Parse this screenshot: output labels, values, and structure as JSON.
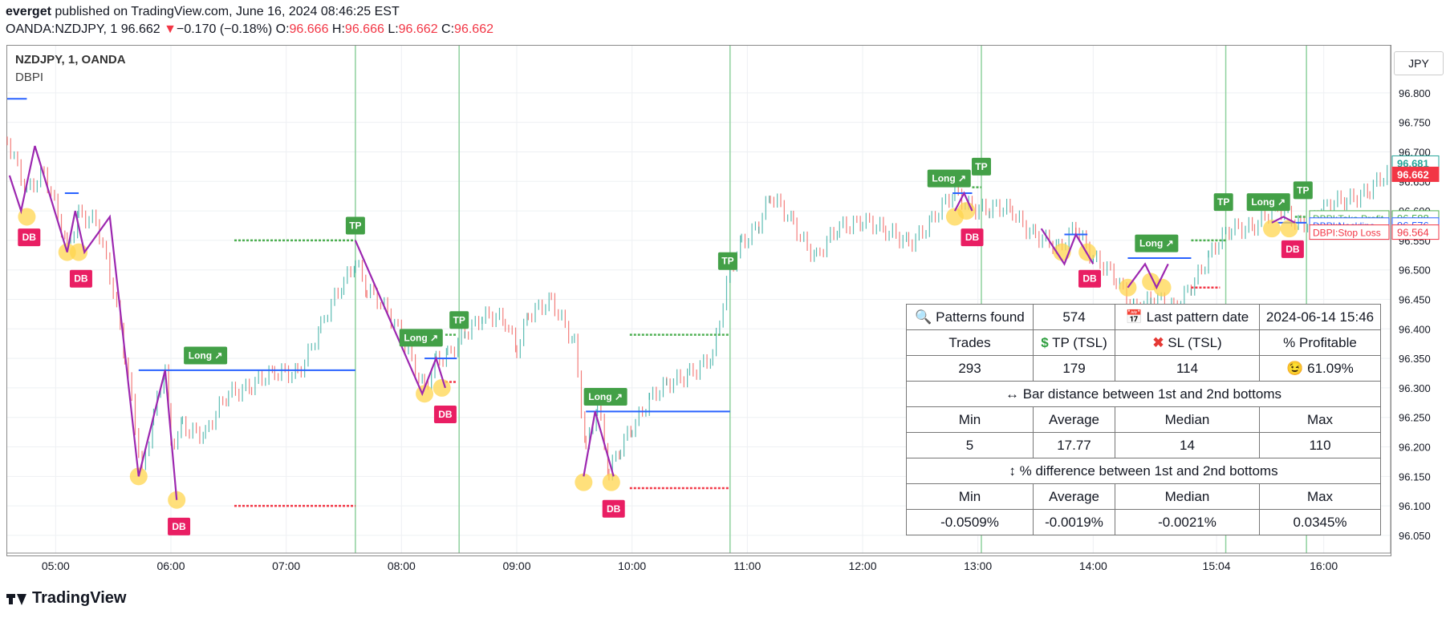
{
  "header": {
    "user": "everget",
    "published": "published on TradingView.com, June 16, 2024 08:46:25 EST",
    "symbol": "OANDA:NZDJPY, 1",
    "last": "96.662",
    "change_arrow": "▼",
    "change": "−0.170 (−0.18%)",
    "open_label": "O:",
    "open": "96.666",
    "high_label": "H:",
    "high": "96.666",
    "low_label": "L:",
    "low": "96.662",
    "close_label": "C:",
    "close": "96.662"
  },
  "chart_legend": {
    "title": "NZDJPY, 1, OANDA",
    "indicator": "DBPI"
  },
  "currency_button": "JPY",
  "colors": {
    "up": "#26a69a",
    "down": "#ef5350",
    "pattern": "#9c27b0",
    "neckline": "#2962ff",
    "tp": "#4caf50",
    "sl": "#f23645",
    "db_label": "#e91e63"
  },
  "price_tags": [
    {
      "name": "tp-tag",
      "label": "DBPI:Take Profit",
      "value": "96.588",
      "color": "#4caf50"
    },
    {
      "name": "neckline-tag",
      "label": "DBPI:Neckline",
      "value": "96.576",
      "color": "#2962ff"
    },
    {
      "name": "sl-tag",
      "label": "DBPI:Stop Loss",
      "value": "96.564",
      "color": "#f23645"
    }
  ],
  "last_price_tags": [
    {
      "value": "96.681",
      "style": "outline"
    },
    {
      "value": "96.662",
      "style": "filled"
    }
  ],
  "stats_table": {
    "patterns_found_icon": "magnifier-icon",
    "patterns_found_label": "Patterns found",
    "patterns_found": "574",
    "last_date_icon": "calendar-icon",
    "last_date_label": "Last pattern date",
    "last_date": "2024-06-14 15:46",
    "trades_label": "Trades",
    "tp_icon": "dollar-icon",
    "tp_label": "TP (TSL)",
    "sl_icon": "cross-icon",
    "sl_label": "SL (TSL)",
    "profitable_label": "% Profitable",
    "trades": "293",
    "tp": "179",
    "sl": "114",
    "profitable_icon": "smile-icon",
    "profitable": "61.09%",
    "bar_distance_title": "↔ Bar distance between 1st and 2nd bottoms",
    "min_label": "Min",
    "avg_label": "Average",
    "median_label": "Median",
    "max_label": "Max",
    "bd_min": "5",
    "bd_avg": "17.77",
    "bd_median": "14",
    "bd_max": "110",
    "pct_diff_title": "↕ % difference between 1st and 2nd bottoms",
    "pd_min": "-0.0509%",
    "pd_avg": "-0.0019%",
    "pd_median": "-0.0021%",
    "pd_max": "0.0345%"
  },
  "footer": {
    "brand": "TradingView"
  },
  "chart_data": {
    "type": "line",
    "title": "NZDJPY, 1, OANDA",
    "xlabel": "",
    "ylabel": "",
    "x_tick_labels": [
      "05:00",
      "06:00",
      "07:00",
      "08:00",
      "09:00",
      "10:00",
      "11:00",
      "12:00",
      "13:00",
      "14:00",
      "15:04",
      "16:00"
    ],
    "y_tick_labels": [
      "96.800",
      "96.750",
      "96.700",
      "96.650",
      "96.600",
      "96.550",
      "96.500",
      "96.450",
      "96.400",
      "96.350",
      "96.300",
      "96.250",
      "96.200",
      "96.150",
      "96.100",
      "96.050"
    ],
    "ylim": [
      96.02,
      96.88
    ],
    "xlim": [
      4.58,
      16.58
    ],
    "grid": true,
    "series": [
      {
        "name": "NZDJPY, 1, OANDA",
        "x": [
          4.58,
          4.75,
          4.9,
          5.1,
          5.2,
          5.35,
          5.5,
          5.6,
          5.75,
          5.85,
          5.95,
          6.0,
          6.1,
          6.3,
          6.5,
          6.7,
          6.9,
          7.1,
          7.3,
          7.5,
          7.6,
          7.7,
          7.85,
          8.0,
          8.2,
          8.3,
          8.4,
          8.55,
          8.7,
          8.9,
          9.0,
          9.1,
          9.3,
          9.5,
          9.6,
          9.7,
          9.8,
          9.9,
          10.0,
          10.15,
          10.3,
          10.5,
          10.7,
          10.85,
          10.95,
          11.1,
          11.2,
          11.4,
          11.6,
          11.8,
          12.0,
          12.2,
          12.4,
          12.6,
          12.8,
          12.95,
          13.1,
          13.3,
          13.5,
          13.7,
          13.85,
          14.0,
          14.2,
          14.35,
          14.5,
          14.7,
          14.85,
          15.0,
          15.2,
          15.4,
          15.6,
          15.8,
          16.0,
          16.2,
          16.4,
          16.58
        ],
        "values": [
          96.72,
          96.64,
          96.66,
          96.54,
          96.6,
          96.58,
          96.46,
          96.36,
          96.16,
          96.25,
          96.33,
          96.2,
          96.24,
          96.22,
          96.29,
          96.31,
          96.32,
          96.33,
          96.4,
          96.48,
          96.52,
          96.47,
          96.43,
          96.39,
          96.3,
          96.34,
          96.35,
          96.4,
          96.42,
          96.41,
          96.37,
          96.43,
          96.44,
          96.38,
          96.2,
          96.27,
          96.15,
          96.2,
          96.24,
          96.28,
          96.3,
          96.33,
          96.35,
          96.5,
          96.55,
          96.58,
          96.62,
          96.58,
          96.52,
          96.57,
          96.59,
          96.56,
          96.55,
          96.58,
          96.63,
          96.61,
          96.6,
          96.6,
          96.56,
          96.53,
          96.58,
          96.52,
          96.48,
          96.44,
          96.45,
          96.43,
          96.48,
          96.52,
          96.57,
          96.58,
          96.6,
          96.58,
          96.6,
          96.62,
          96.64,
          96.66
        ]
      }
    ],
    "pattern_lines": [
      {
        "x": [
          4.6,
          4.7,
          4.82,
          5.1,
          5.17,
          5.25,
          5.47,
          5.72,
          5.95,
          6.05
        ],
        "values": [
          96.66,
          96.6,
          96.71,
          96.53,
          96.6,
          96.53,
          96.59,
          96.15,
          96.33,
          96.11
        ]
      },
      {
        "x": [
          7.6,
          8.18,
          8.3,
          8.38
        ],
        "values": [
          96.55,
          96.29,
          96.35,
          96.3
        ]
      },
      {
        "x": [
          9.58,
          9.68,
          9.84
        ],
        "values": [
          96.15,
          96.26,
          96.15
        ]
      },
      {
        "x": [
          12.8,
          12.88,
          12.95
        ],
        "values": [
          96.6,
          96.63,
          96.6
        ]
      },
      {
        "x": [
          13.55,
          13.75,
          13.85,
          14.0
        ],
        "values": [
          96.57,
          96.51,
          96.56,
          96.51
        ]
      },
      {
        "x": [
          14.3,
          14.45,
          14.55,
          14.65
        ],
        "values": [
          96.47,
          96.51,
          96.47,
          96.51
        ]
      },
      {
        "x": [
          15.55,
          15.65,
          15.75
        ],
        "values": [
          96.58,
          96.59,
          96.58
        ]
      }
    ],
    "necklines": [
      {
        "x": [
          5.72,
          7.6
        ],
        "value": 96.33
      },
      {
        "x": [
          4.58,
          4.75
        ],
        "value": 96.79
      },
      {
        "x": [
          5.08,
          5.2
        ],
        "value": 96.63
      },
      {
        "x": [
          8.2,
          8.48
        ],
        "value": 96.35
      },
      {
        "x": [
          9.6,
          10.85
        ],
        "value": 96.26
      },
      {
        "x": [
          12.78,
          12.95
        ],
        "value": 96.63
      },
      {
        "x": [
          13.75,
          13.95
        ],
        "value": 96.56
      },
      {
        "x": [
          14.3,
          14.85
        ],
        "value": 96.52
      },
      {
        "x": [
          15.6,
          15.85
        ],
        "value": 96.58
      }
    ],
    "take_profit_lines": [
      {
        "x": [
          6.55,
          7.6
        ],
        "value": 96.55
      },
      {
        "x": [
          8.38,
          8.48
        ],
        "value": 96.39
      },
      {
        "x": [
          9.98,
          10.85
        ],
        "value": 96.39
      },
      {
        "x": [
          12.95,
          13.03
        ],
        "value": 96.64
      },
      {
        "x": [
          14.85,
          15.15
        ],
        "value": 96.55
      },
      {
        "x": [
          15.75,
          15.85
        ],
        "value": 96.59
      }
    ],
    "stop_loss_lines": [
      {
        "x": [
          6.55,
          7.6
        ],
        "value": 96.1
      },
      {
        "x": [
          8.38,
          8.48
        ],
        "value": 96.31
      },
      {
        "x": [
          9.98,
          10.85
        ],
        "value": 96.13
      },
      {
        "x": [
          14.85,
          15.1
        ],
        "value": 96.47
      }
    ],
    "bottom_markers": [
      {
        "x": 4.75,
        "value": 96.59
      },
      {
        "x": 5.1,
        "value": 96.53
      },
      {
        "x": 5.2,
        "value": 96.53
      },
      {
        "x": 5.72,
        "value": 96.15
      },
      {
        "x": 6.05,
        "value": 96.11
      },
      {
        "x": 8.2,
        "value": 96.29
      },
      {
        "x": 8.35,
        "value": 96.3
      },
      {
        "x": 9.58,
        "value": 96.14
      },
      {
        "x": 9.82,
        "value": 96.14
      },
      {
        "x": 12.8,
        "value": 96.59
      },
      {
        "x": 12.9,
        "value": 96.6
      },
      {
        "x": 13.73,
        "value": 96.53
      },
      {
        "x": 13.95,
        "value": 96.53
      },
      {
        "x": 14.3,
        "value": 96.47
      },
      {
        "x": 14.5,
        "value": 96.48
      },
      {
        "x": 14.6,
        "value": 96.47
      },
      {
        "x": 15.55,
        "value": 96.57
      },
      {
        "x": 15.7,
        "value": 96.57
      }
    ],
    "db_labels": [
      {
        "text": "DB",
        "x": 4.77,
        "value": 96.57
      },
      {
        "text": "DB",
        "x": 5.22,
        "value": 96.5
      },
      {
        "text": "DB",
        "x": 6.07,
        "value": 96.08
      },
      {
        "text": "DB",
        "x": 8.38,
        "value": 96.27
      },
      {
        "text": "DB",
        "x": 9.84,
        "value": 96.11
      },
      {
        "text": "DB",
        "x": 12.95,
        "value": 96.57
      },
      {
        "text": "DB",
        "x": 13.97,
        "value": 96.5
      },
      {
        "text": "DB",
        "x": 14.55,
        "value": 96.44
      },
      {
        "text": "DB",
        "x": 15.73,
        "value": 96.55
      }
    ],
    "long_labels": [
      {
        "text": "Long ↗",
        "x": 6.3,
        "value": 96.34
      },
      {
        "text": "Long ↗",
        "x": 8.17,
        "value": 96.37
      },
      {
        "text": "Long ↗",
        "x": 9.77,
        "value": 96.27
      },
      {
        "text": "Long ↗",
        "x": 12.75,
        "value": 96.64
      },
      {
        "text": "Long ↗",
        "x": 14.55,
        "value": 96.53
      },
      {
        "text": "Long ↗",
        "x": 15.52,
        "value": 96.6
      }
    ],
    "tp_labels": [
      {
        "text": "TP",
        "x": 7.6,
        "value": 96.56
      },
      {
        "text": "TP",
        "x": 8.5,
        "value": 96.4
      },
      {
        "text": "TP",
        "x": 10.83,
        "value": 96.5
      },
      {
        "text": "TP",
        "x": 13.03,
        "value": 96.66
      },
      {
        "text": "TP",
        "x": 15.13,
        "value": 96.6
      },
      {
        "text": "TP",
        "x": 15.82,
        "value": 96.62
      }
    ],
    "trade_close_lines_x": [
      7.6,
      8.5,
      10.85,
      13.03,
      15.15,
      15.85
    ]
  }
}
